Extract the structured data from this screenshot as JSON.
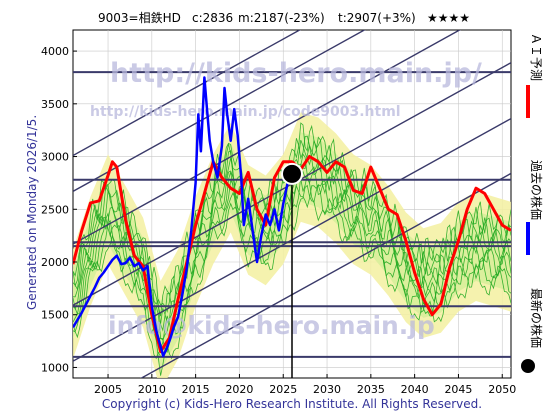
{
  "header": {
    "ticker": "9003=相鉄HD",
    "current": "c:2836",
    "min_forecast": "m:2187(-23%)",
    "target": "t:2907(+3%)",
    "stars": "★★★★"
  },
  "side_label": "Generated on Monday 2026/1/5.",
  "footer": "Copyright (c) Kids-Hero Research Institute. All Rights Reserved.",
  "watermarks": {
    "url": "http://kids-hero.main.jp/",
    "code_url": "http://kids-hero.main.jp/code9003.html",
    "email": "info@kids-hero.main.jp"
  },
  "legend": {
    "ai_forecast": "ＡＩ予測",
    "past_price": "過去の株価",
    "latest_price": "最新の株価"
  },
  "colors": {
    "forecast": "#ff0000",
    "past": "#0000ff",
    "latest": "#000000",
    "band_fill": "#d8ee9a",
    "band_light": "#f3f0a0",
    "band_lines": "#22aa22",
    "level_lines": "#3a3a6a",
    "grid": "#c8c8c8",
    "text": "#333399"
  },
  "chart_data": {
    "type": "line",
    "x_range": [
      2001,
      2051
    ],
    "y_range": [
      900,
      4200
    ],
    "x_ticks": [
      2005,
      2010,
      2015,
      2020,
      2025,
      2030,
      2035,
      2040,
      2045,
      2050
    ],
    "y_ticks": [
      1000,
      1500,
      2000,
      2500,
      3000,
      3500,
      4000
    ],
    "grid": true,
    "latest_point": {
      "x": 2026.0,
      "y": 2836
    },
    "horizontal_levels": [
      3800,
      2780,
      2187,
      2150,
      1580,
      1100
    ],
    "trend_channel": {
      "slope_per_year": 46,
      "intercepts_at_2001": [
        540,
        1060,
        1590,
        2170,
        2670,
        3010
      ]
    },
    "series": [
      {
        "name": "過去の株価",
        "color": "#0000ff",
        "points": [
          [
            2001.0,
            1380
          ],
          [
            2001.5,
            1450
          ],
          [
            2002.0,
            1520
          ],
          [
            2002.5,
            1600
          ],
          [
            2003.0,
            1680
          ],
          [
            2003.5,
            1760
          ],
          [
            2004.0,
            1850
          ],
          [
            2004.5,
            1900
          ],
          [
            2005.0,
            1960
          ],
          [
            2005.5,
            2020
          ],
          [
            2006.0,
            2060
          ],
          [
            2006.5,
            1980
          ],
          [
            2007.0,
            1990
          ],
          [
            2007.5,
            2040
          ],
          [
            2008.0,
            1960
          ],
          [
            2008.5,
            1990
          ],
          [
            2009.0,
            1920
          ],
          [
            2009.5,
            1960
          ],
          [
            2010.0,
            1580
          ],
          [
            2010.5,
            1350
          ],
          [
            2011.0,
            1200
          ],
          [
            2011.3,
            1110
          ],
          [
            2011.7,
            1180
          ],
          [
            2012.0,
            1250
          ],
          [
            2012.5,
            1380
          ],
          [
            2013.0,
            1480
          ],
          [
            2013.5,
            1700
          ],
          [
            2014.0,
            1950
          ],
          [
            2014.5,
            2300
          ],
          [
            2015.0,
            2750
          ],
          [
            2015.3,
            3400
          ],
          [
            2015.6,
            3050
          ],
          [
            2016.0,
            3750
          ],
          [
            2016.3,
            3450
          ],
          [
            2016.6,
            3150
          ],
          [
            2017.0,
            2950
          ],
          [
            2017.5,
            2800
          ],
          [
            2018.0,
            3100
          ],
          [
            2018.3,
            3650
          ],
          [
            2018.6,
            3400
          ],
          [
            2019.0,
            3150
          ],
          [
            2019.4,
            3450
          ],
          [
            2019.8,
            3200
          ],
          [
            2020.2,
            2800
          ],
          [
            2020.5,
            2350
          ],
          [
            2021.0,
            2600
          ],
          [
            2021.5,
            2300
          ],
          [
            2022.0,
            2000
          ],
          [
            2022.5,
            2250
          ],
          [
            2023.0,
            2450
          ],
          [
            2023.5,
            2350
          ],
          [
            2024.0,
            2500
          ],
          [
            2024.5,
            2300
          ],
          [
            2025.0,
            2550
          ],
          [
            2025.5,
            2750
          ],
          [
            2026.0,
            2836
          ]
        ]
      },
      {
        "name": "ＡＩ予測",
        "color": "#ff0000",
        "points": [
          [
            2001.0,
            1980
          ],
          [
            2002.0,
            2300
          ],
          [
            2003.0,
            2560
          ],
          [
            2004.0,
            2580
          ],
          [
            2005.0,
            2820
          ],
          [
            2005.5,
            2950
          ],
          [
            2006.0,
            2900
          ],
          [
            2007.0,
            2400
          ],
          [
            2008.0,
            2060
          ],
          [
            2009.0,
            1960
          ],
          [
            2010.0,
            1500
          ],
          [
            2011.0,
            1150
          ],
          [
            2012.0,
            1280
          ],
          [
            2013.0,
            1650
          ],
          [
            2014.0,
            2000
          ],
          [
            2015.0,
            2350
          ],
          [
            2016.0,
            2650
          ],
          [
            2017.0,
            2950
          ],
          [
            2018.0,
            2800
          ],
          [
            2019.0,
            2700
          ],
          [
            2020.0,
            2650
          ],
          [
            2021.0,
            2850
          ],
          [
            2022.0,
            2500
          ],
          [
            2023.0,
            2350
          ],
          [
            2024.0,
            2800
          ],
          [
            2025.0,
            2950
          ],
          [
            2026.0,
            2950
          ],
          [
            2027.0,
            2880
          ],
          [
            2028.0,
            3000
          ],
          [
            2029.0,
            2950
          ],
          [
            2030.0,
            2850
          ],
          [
            2031.0,
            2950
          ],
          [
            2032.0,
            2900
          ],
          [
            2033.0,
            2680
          ],
          [
            2034.0,
            2650
          ],
          [
            2035.0,
            2900
          ],
          [
            2036.0,
            2700
          ],
          [
            2037.0,
            2500
          ],
          [
            2038.0,
            2450
          ],
          [
            2039.0,
            2200
          ],
          [
            2040.0,
            1900
          ],
          [
            2041.0,
            1650
          ],
          [
            2042.0,
            1500
          ],
          [
            2043.0,
            1600
          ],
          [
            2044.0,
            1950
          ],
          [
            2045.0,
            2200
          ],
          [
            2046.0,
            2500
          ],
          [
            2047.0,
            2700
          ],
          [
            2048.0,
            2650
          ],
          [
            2049.0,
            2500
          ],
          [
            2050.0,
            2350
          ],
          [
            2051.0,
            2300
          ]
        ]
      }
    ],
    "band_center": [
      [
        2001,
        1600
      ],
      [
        2003,
        2100
      ],
      [
        2005,
        2500
      ],
      [
        2007,
        2200
      ],
      [
        2009,
        1900
      ],
      [
        2011,
        1300
      ],
      [
        2013,
        1600
      ],
      [
        2015,
        2100
      ],
      [
        2017,
        2500
      ],
      [
        2019,
        2800
      ],
      [
        2021,
        2400
      ],
      [
        2023,
        2300
      ],
      [
        2025,
        2500
      ],
      [
        2027,
        2900
      ],
      [
        2029,
        2850
      ],
      [
        2031,
        2700
      ],
      [
        2033,
        2500
      ],
      [
        2035,
        2400
      ],
      [
        2037,
        2200
      ],
      [
        2039,
        1950
      ],
      [
        2041,
        1800
      ],
      [
        2043,
        1850
      ],
      [
        2045,
        2050
      ],
      [
        2047,
        2150
      ],
      [
        2049,
        2100
      ],
      [
        2051,
        2050
      ]
    ]
  }
}
